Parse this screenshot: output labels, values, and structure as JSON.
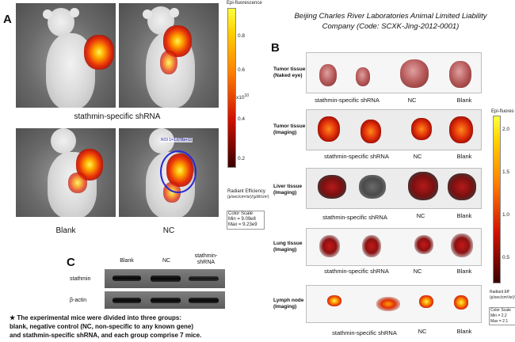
{
  "panel_a": {
    "letter": "A",
    "labels": {
      "top_group": "stathmin-specific shRNA",
      "bottom_left": "Blank",
      "bottom_right": "NC"
    },
    "roi_label": "ROI 1=1.678e+11",
    "colorbar": {
      "title": "Epi-fluorescence",
      "ticks": [
        "0.8",
        "0.6",
        "0.4",
        "0.2"
      ],
      "exponent": "x10",
      "exponent_power": "10",
      "unit_title": "Radiant Efficiency",
      "unit_detail": "(p/sec/cm²/sr)/(µW/cm²)",
      "scale_title": "Color Scale",
      "scale_min": "Min = 9.09e8",
      "scale_max": "Max = 9.23e9"
    }
  },
  "source_note": "Beijing Charles River Laboratories Animal Limited Liability Company (Code: SCXK-Jing-2012-0001)",
  "panel_b": {
    "letter": "B",
    "rows": [
      {
        "label_line1": "Tumor tissue",
        "label_line2": "(Naked eye)"
      },
      {
        "label_line1": "Tumor tissue",
        "label_line2": "(Imaging)"
      },
      {
        "label_line1": "Liver tissue",
        "label_line2": "(Imaging)"
      },
      {
        "label_line1": "Lung tissue",
        "label_line2": "(Imaging)"
      },
      {
        "label_line1": "Lymph node",
        "label_line2": "(Imaging)"
      }
    ],
    "groups": [
      "stathmin-specific shRNA",
      "NC",
      "Blank"
    ],
    "colorbar": {
      "title": "Epi-fluores",
      "ticks": [
        "2.0",
        "1.5",
        "1.0",
        "0.5"
      ],
      "unit_title": "Radiant Eff",
      "unit_detail": "(p/sec/cm²/sr)/(µW/cm²)",
      "scale_title": "Color Scale",
      "scale_min": "Min = 2.2",
      "scale_max": "Max = 2.1"
    }
  },
  "panel_c": {
    "letter": "C",
    "columns": [
      "Blank",
      "NC",
      "stathmin-shRNA"
    ],
    "rows": [
      "stathmin",
      "β-actin"
    ]
  },
  "note": {
    "star": "★",
    "line1": "The experimental mice were divided into three groups:",
    "line2": "blank, negative control (NC, non-specific to any known gene)",
    "line3": "and stathmin-specific shRNA, and each group comprise   7 mice."
  }
}
